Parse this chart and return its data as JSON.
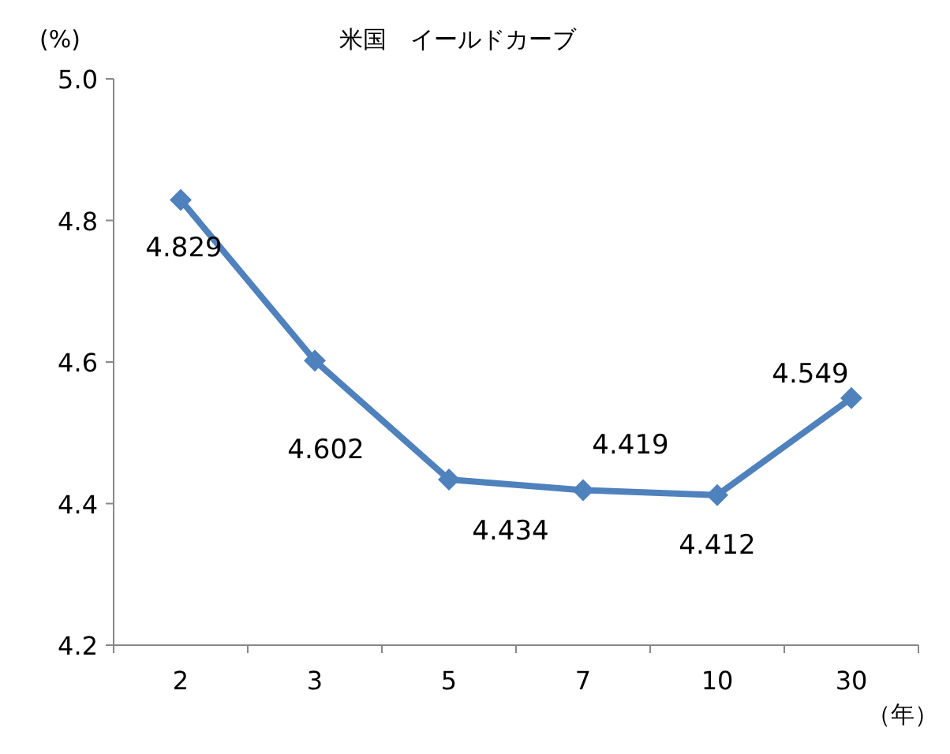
{
  "chart_data": {
    "type": "line",
    "title": "米国　イールドカーブ",
    "ylabel": "(%)",
    "xlabel": "（年）",
    "categories": [
      "2",
      "3",
      "5",
      "7",
      "10",
      "30"
    ],
    "series": [
      {
        "color": "#4f81bd",
        "values": [
          4.829,
          4.602,
          4.434,
          4.419,
          4.412,
          4.549
        ]
      }
    ],
    "ylim": [
      4.2,
      5.0
    ],
    "yticks": [
      {
        "value": 4.2,
        "label": "4.2"
      },
      {
        "value": 4.4,
        "label": "4.4"
      },
      {
        "value": 4.6,
        "label": "4.6"
      },
      {
        "value": 4.8,
        "label": "4.8"
      },
      {
        "value": 5.0,
        "label": "5.0"
      }
    ],
    "data_labels": true,
    "marker": "diamond",
    "line_style": "solid",
    "grid": false
  }
}
